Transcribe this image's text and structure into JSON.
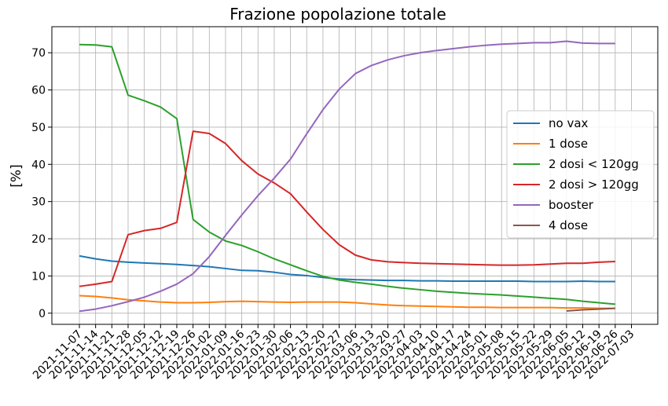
{
  "chart_data": {
    "type": "line",
    "title": "Frazione popolazione totale",
    "xlabel": "",
    "ylabel": "[%]",
    "ylim": [
      -3,
      77
    ],
    "yticks": [
      0,
      10,
      20,
      30,
      40,
      50,
      60,
      70
    ],
    "grid": true,
    "legend_position": "center-right",
    "x": [
      "2021-11-07",
      "2021-11-14",
      "2021-11-21",
      "2021-11-28",
      "2021-12-05",
      "2021-12-12",
      "2021-12-19",
      "2021-12-26",
      "2022-01-02",
      "2022-01-09",
      "2022-01-16",
      "2022-01-23",
      "2022-01-30",
      "2022-02-06",
      "2022-02-13",
      "2022-02-20",
      "2022-02-27",
      "2022-03-06",
      "2022-03-13",
      "2022-03-20",
      "2022-03-27",
      "2022-04-03",
      "2022-04-10",
      "2022-04-17",
      "2022-04-24",
      "2022-05-01",
      "2022-05-08",
      "2022-05-15",
      "2022-05-22",
      "2022-05-29",
      "2022-06-05",
      "2022-06-12",
      "2022-06-19",
      "2022-06-26",
      "2022-07-03"
    ],
    "series": [
      {
        "name": "no vax",
        "color": "#1f77b4",
        "values": [
          15.4,
          14.6,
          14.0,
          13.7,
          13.5,
          13.3,
          13.1,
          12.8,
          12.5,
          12.0,
          11.5,
          11.4,
          11.0,
          10.4,
          10.1,
          9.6,
          9.2,
          9.0,
          8.9,
          8.8,
          8.8,
          8.7,
          8.7,
          8.6,
          8.6,
          8.6,
          8.6,
          8.6,
          8.5,
          8.5,
          8.5,
          8.6,
          8.5,
          8.5,
          null
        ]
      },
      {
        "name": "1 dose",
        "color": "#ff7f0e",
        "values": [
          4.7,
          4.5,
          4.1,
          3.6,
          3.3,
          3.0,
          2.8,
          2.8,
          2.9,
          3.1,
          3.2,
          3.1,
          3.0,
          2.9,
          3.0,
          3.0,
          3.0,
          2.8,
          2.5,
          2.2,
          2.0,
          1.9,
          1.8,
          1.7,
          1.6,
          1.6,
          1.5,
          1.5,
          1.5,
          1.5,
          1.4,
          1.4,
          1.3,
          1.3,
          null
        ]
      },
      {
        "name": "2 dosi < 120gg",
        "color": "#2ca02c",
        "values": [
          72.2,
          72.1,
          71.6,
          58.6,
          57.1,
          55.4,
          52.3,
          25.2,
          21.8,
          19.4,
          18.2,
          16.5,
          14.6,
          13.0,
          11.4,
          9.9,
          8.9,
          8.3,
          7.8,
          7.2,
          6.7,
          6.3,
          5.9,
          5.6,
          5.3,
          5.1,
          4.9,
          4.6,
          4.3,
          4.0,
          3.7,
          3.2,
          2.8,
          2.4,
          null
        ]
      },
      {
        "name": "2 dosi > 120gg",
        "color": "#d62728",
        "values": [
          7.2,
          7.8,
          8.5,
          21.1,
          22.2,
          22.8,
          24.4,
          48.9,
          48.3,
          45.6,
          41.0,
          37.4,
          35.0,
          32.1,
          27.2,
          22.5,
          18.4,
          15.6,
          14.3,
          13.8,
          13.6,
          13.4,
          13.3,
          13.2,
          13.1,
          13.0,
          12.9,
          12.9,
          13.0,
          13.2,
          13.4,
          13.4,
          13.7,
          13.9,
          null
        ]
      },
      {
        "name": "booster",
        "color": "#9467bd",
        "values": [
          0.5,
          1.1,
          2.0,
          3.1,
          4.3,
          5.9,
          7.8,
          10.6,
          15.2,
          20.9,
          26.4,
          31.6,
          36.3,
          41.4,
          48.2,
          54.7,
          60.2,
          64.4,
          66.6,
          68.1,
          69.2,
          70.0,
          70.6,
          71.1,
          71.6,
          72.0,
          72.3,
          72.5,
          72.7,
          72.7,
          73.1,
          72.6,
          72.5,
          72.5,
          null
        ]
      },
      {
        "name": "4 dose",
        "color": "#8c564b",
        "values": [
          null,
          null,
          null,
          null,
          null,
          null,
          null,
          null,
          null,
          null,
          null,
          null,
          null,
          null,
          null,
          null,
          null,
          null,
          null,
          null,
          null,
          null,
          null,
          null,
          null,
          null,
          null,
          null,
          null,
          null,
          0.6,
          0.9,
          1.1,
          1.3,
          null
        ]
      }
    ]
  }
}
